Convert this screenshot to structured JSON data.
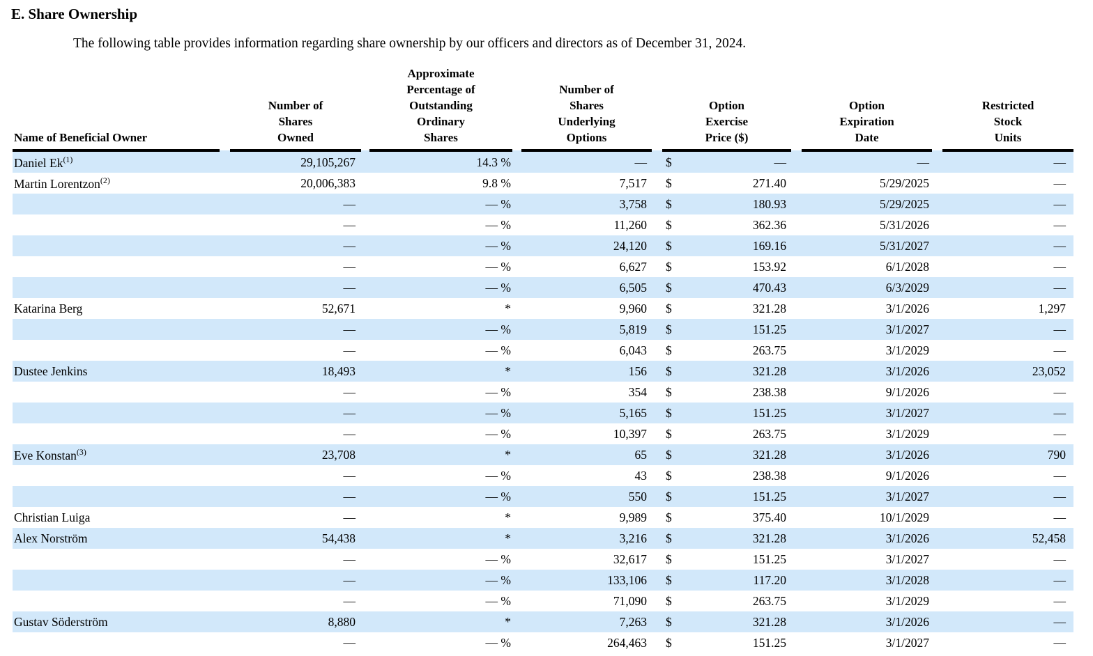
{
  "doc": {
    "title": "E. Share Ownership",
    "intro": "The following table provides information regarding share ownership by our officers and directors as of December 31, 2024."
  },
  "table": {
    "stripe_color": "#d2e8fa",
    "dollar_sign": "$",
    "headers": {
      "name": "Name of Beneficial Owner",
      "shares_owned": "Number of\nShares\nOwned",
      "pct": "Approximate\nPercentage of\nOutstanding\nOrdinary\nShares",
      "options": "Number of\nShares\nUnderlying\nOptions",
      "price": "Option\nExercise\nPrice ($)",
      "date": "Option\nExpiration\nDate",
      "rsu": "Restricted\nStock\nUnits"
    },
    "rows": [
      {
        "name": "Daniel Ek",
        "fn": "(1)",
        "shares": "29,105,267",
        "pct": "14.3 %",
        "options": "—",
        "price": "—",
        "date": "—",
        "rsu": "—"
      },
      {
        "name": "Martin Lorentzon",
        "fn": "(2)",
        "shares": "20,006,383",
        "pct": "9.8 %",
        "options": "7,517",
        "price": "271.40",
        "date": "5/29/2025",
        "rsu": "—"
      },
      {
        "name": "",
        "fn": "",
        "shares": "—",
        "pct": "— %",
        "options": "3,758",
        "price": "180.93",
        "date": "5/29/2025",
        "rsu": "—"
      },
      {
        "name": "",
        "fn": "",
        "shares": "—",
        "pct": "— %",
        "options": "11,260",
        "price": "362.36",
        "date": "5/31/2026",
        "rsu": "—"
      },
      {
        "name": "",
        "fn": "",
        "shares": "—",
        "pct": "— %",
        "options": "24,120",
        "price": "169.16",
        "date": "5/31/2027",
        "rsu": "—"
      },
      {
        "name": "",
        "fn": "",
        "shares": "—",
        "pct": "— %",
        "options": "6,627",
        "price": "153.92",
        "date": "6/1/2028",
        "rsu": "—"
      },
      {
        "name": "",
        "fn": "",
        "shares": "—",
        "pct": "— %",
        "options": "6,505",
        "price": "470.43",
        "date": "6/3/2029",
        "rsu": "—"
      },
      {
        "name": "Katarina Berg",
        "fn": "",
        "shares": "52,671",
        "pct": "*",
        "options": "9,960",
        "price": "321.28",
        "date": "3/1/2026",
        "rsu": "1,297"
      },
      {
        "name": "",
        "fn": "",
        "shares": "—",
        "pct": "— %",
        "options": "5,819",
        "price": "151.25",
        "date": "3/1/2027",
        "rsu": "—"
      },
      {
        "name": "",
        "fn": "",
        "shares": "—",
        "pct": "— %",
        "options": "6,043",
        "price": "263.75",
        "date": "3/1/2029",
        "rsu": "—"
      },
      {
        "name": "Dustee Jenkins",
        "fn": "",
        "shares": "18,493",
        "pct": "*",
        "options": "156",
        "price": "321.28",
        "date": "3/1/2026",
        "rsu": "23,052"
      },
      {
        "name": "",
        "fn": "",
        "shares": "—",
        "pct": "— %",
        "options": "354",
        "price": "238.38",
        "date": "9/1/2026",
        "rsu": "—"
      },
      {
        "name": "",
        "fn": "",
        "shares": "—",
        "pct": "— %",
        "options": "5,165",
        "price": "151.25",
        "date": "3/1/2027",
        "rsu": "—"
      },
      {
        "name": "",
        "fn": "",
        "shares": "—",
        "pct": "— %",
        "options": "10,397",
        "price": "263.75",
        "date": "3/1/2029",
        "rsu": "—"
      },
      {
        "name": "Eve Konstan",
        "fn": "(3)",
        "shares": "23,708",
        "pct": "*",
        "options": "65",
        "price": "321.28",
        "date": "3/1/2026",
        "rsu": "790"
      },
      {
        "name": "",
        "fn": "",
        "shares": "—",
        "pct": "— %",
        "options": "43",
        "price": "238.38",
        "date": "9/1/2026",
        "rsu": "—"
      },
      {
        "name": "",
        "fn": "",
        "shares": "—",
        "pct": "— %",
        "options": "550",
        "price": "151.25",
        "date": "3/1/2027",
        "rsu": "—"
      },
      {
        "name": "Christian Luiga",
        "fn": "",
        "shares": "—",
        "pct": "*",
        "options": "9,989",
        "price": "375.40",
        "date": "10/1/2029",
        "rsu": "—"
      },
      {
        "name": "Alex Norström",
        "fn": "",
        "shares": "54,438",
        "pct": "*",
        "options": "3,216",
        "price": "321.28",
        "date": "3/1/2026",
        "rsu": "52,458"
      },
      {
        "name": "",
        "fn": "",
        "shares": "—",
        "pct": "— %",
        "options": "32,617",
        "price": "151.25",
        "date": "3/1/2027",
        "rsu": "—"
      },
      {
        "name": "",
        "fn": "",
        "shares": "—",
        "pct": "— %",
        "options": "133,106",
        "price": "117.20",
        "date": "3/1/2028",
        "rsu": "—"
      },
      {
        "name": "",
        "fn": "",
        "shares": "—",
        "pct": "— %",
        "options": "71,090",
        "price": "263.75",
        "date": "3/1/2029",
        "rsu": "—"
      },
      {
        "name": "Gustav Söderström",
        "fn": "",
        "shares": "8,880",
        "pct": "*",
        "options": "7,263",
        "price": "321.28",
        "date": "3/1/2026",
        "rsu": "—"
      },
      {
        "name": "",
        "fn": "",
        "shares": "—",
        "pct": "— %",
        "options": "264,463",
        "price": "151.25",
        "date": "3/1/2027",
        "rsu": "—"
      }
    ]
  }
}
